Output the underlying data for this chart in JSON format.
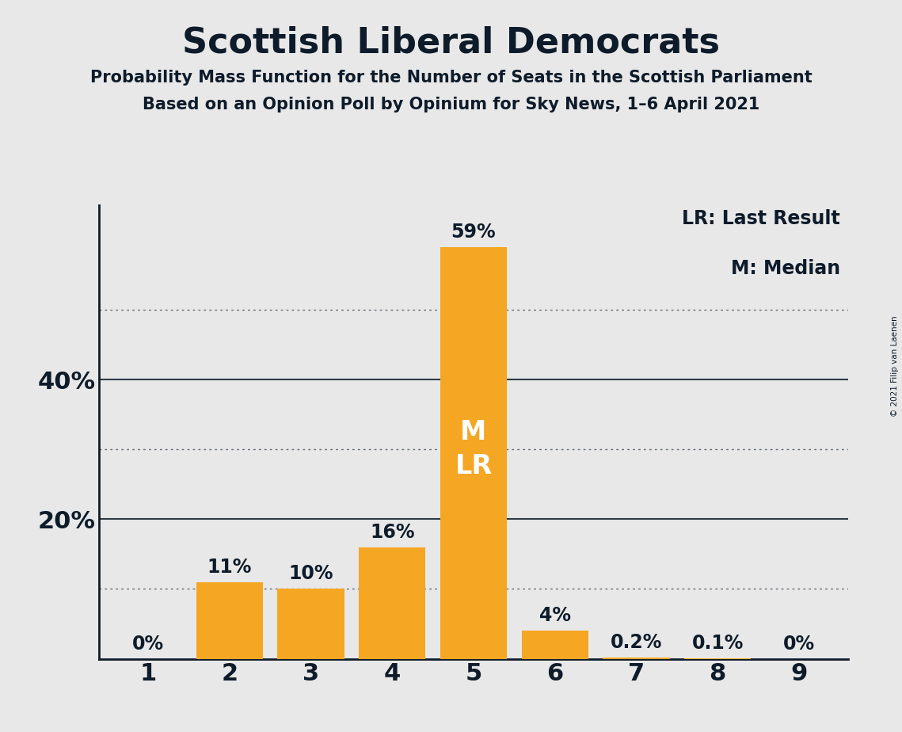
{
  "title": "Scottish Liberal Democrats",
  "subtitle1": "Probability Mass Function for the Number of Seats in the Scottish Parliament",
  "subtitle2": "Based on an Opinion Poll by Opinium for Sky News, 1–6 April 2021",
  "copyright": "© 2021 Filip van Laenen",
  "categories": [
    1,
    2,
    3,
    4,
    5,
    6,
    7,
    8,
    9
  ],
  "values": [
    0.0,
    11.0,
    10.0,
    16.0,
    59.0,
    4.0,
    0.2,
    0.1,
    0.0
  ],
  "bar_labels": [
    "0%",
    "11%",
    "10%",
    "16%",
    "59%",
    "4%",
    "0.2%",
    "0.1%",
    "0%"
  ],
  "bar_color": "#F5A623",
  "background_color": "#E8E8E8",
  "title_color": "#0D1B2A",
  "legend_line1": "LR: Last Result",
  "legend_line2": "M: Median",
  "dotted_lines": [
    10,
    30,
    50
  ],
  "solid_lines": [
    20,
    40
  ],
  "ylim": [
    0,
    65
  ],
  "title_fontsize": 32,
  "subtitle_fontsize": 15,
  "tick_fontsize": 22,
  "bar_label_fontsize": 17,
  "inside_label_fontsize": 24,
  "legend_fontsize": 17
}
